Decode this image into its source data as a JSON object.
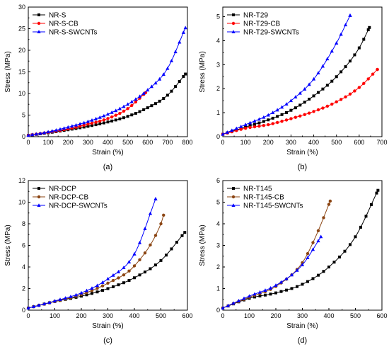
{
  "chart_data": [
    {
      "type": "line",
      "panel_label": "(a)",
      "xlabel": "Strain (%)",
      "ylabel": "Stress (MPa)",
      "xlim": [
        0,
        800
      ],
      "ylim": [
        0,
        30
      ],
      "xticks": [
        0,
        100,
        200,
        300,
        400,
        500,
        600,
        700,
        800
      ],
      "yticks": [
        0,
        5,
        10,
        15,
        20,
        25,
        30
      ],
      "grid": false,
      "legend_position": "top-left",
      "series": [
        {
          "name": "NR-S",
          "color": "#000000",
          "marker": "square",
          "x": [
            0,
            100,
            200,
            300,
            400,
            500,
            600,
            700,
            790
          ],
          "y": [
            0.3,
            0.9,
            1.6,
            2.4,
            3.4,
            4.7,
            6.7,
            9.6,
            14.5
          ]
        },
        {
          "name": "NR-S-CB",
          "color": "#ff0000",
          "marker": "circle",
          "x": [
            0,
            100,
            200,
            300,
            400,
            500,
            590
          ],
          "y": [
            0.3,
            1.0,
            1.8,
            2.9,
            4.2,
            6.5,
            10.2
          ]
        },
        {
          "name": "NR-S-SWCNTs",
          "color": "#0000ff",
          "marker": "triangle",
          "x": [
            0,
            100,
            200,
            300,
            400,
            500,
            600,
            700,
            790
          ],
          "y": [
            0.3,
            1.1,
            2.2,
            3.5,
            5.2,
            7.5,
            10.8,
            15.8,
            25.2
          ]
        }
      ]
    },
    {
      "type": "line",
      "panel_label": "(b)",
      "xlabel": "Strain (%)",
      "ylabel": "Stress (MPa)",
      "xlim": [
        0,
        700
      ],
      "ylim": [
        0,
        5.4
      ],
      "xticks": [
        0,
        100,
        200,
        300,
        400,
        500,
        600,
        700
      ],
      "yticks": [
        0,
        1,
        2,
        3,
        4,
        5
      ],
      "grid": false,
      "legend_position": "top-left",
      "series": [
        {
          "name": "NR-T29",
          "color": "#000000",
          "marker": "square",
          "x": [
            0,
            100,
            200,
            300,
            400,
            500,
            600,
            645
          ],
          "y": [
            0.1,
            0.4,
            0.7,
            1.1,
            1.7,
            2.5,
            3.7,
            4.55
          ]
        },
        {
          "name": "NR-T29-CB",
          "color": "#ff0000",
          "marker": "circle",
          "x": [
            0,
            100,
            200,
            300,
            400,
            500,
            600,
            680
          ],
          "y": [
            0.1,
            0.35,
            0.5,
            0.75,
            1.05,
            1.45,
            2.05,
            2.8
          ]
        },
        {
          "name": "NR-T29-SWCNTs",
          "color": "#0000ff",
          "marker": "triangle",
          "x": [
            0,
            100,
            200,
            300,
            400,
            500,
            560
          ],
          "y": [
            0.1,
            0.5,
            0.9,
            1.5,
            2.4,
            3.9,
            5.05
          ]
        }
      ]
    },
    {
      "type": "line",
      "panel_label": "(c)",
      "xlabel": "Strain (%)",
      "ylabel": "Stress (MPa)",
      "xlim": [
        0,
        600
      ],
      "ylim": [
        0,
        12
      ],
      "xticks": [
        0,
        100,
        200,
        300,
        400,
        500,
        600
      ],
      "yticks": [
        0,
        2,
        4,
        6,
        8,
        10,
        12
      ],
      "grid": false,
      "legend_position": "top-left",
      "series": [
        {
          "name": "NR-DCP",
          "color": "#000000",
          "marker": "square",
          "x": [
            0,
            100,
            200,
            300,
            400,
            500,
            590
          ],
          "y": [
            0.2,
            0.8,
            1.3,
            2.0,
            3.0,
            4.6,
            7.2
          ]
        },
        {
          "name": "NR-DCP-CB",
          "color": "#8b4513",
          "marker": "circle",
          "x": [
            0,
            100,
            200,
            300,
            400,
            500,
            510
          ],
          "y": [
            0.2,
            0.8,
            1.45,
            2.5,
            4.1,
            8.0,
            8.8
          ]
        },
        {
          "name": "NR-DCP-SWCNTs",
          "color": "#0000ff",
          "marker": "triangle",
          "x": [
            0,
            100,
            200,
            300,
            400,
            480
          ],
          "y": [
            0.2,
            0.85,
            1.6,
            2.9,
            5.2,
            10.3
          ]
        }
      ]
    },
    {
      "type": "line",
      "panel_label": "(d)",
      "xlabel": "Strain (%)",
      "ylabel": "Stress (MPa)",
      "xlim": [
        0,
        600
      ],
      "ylim": [
        0,
        6
      ],
      "xticks": [
        0,
        100,
        200,
        300,
        400,
        500,
        600
      ],
      "yticks": [
        0,
        1,
        2,
        3,
        4,
        5,
        6
      ],
      "grid": false,
      "legend_position": "top-left",
      "series": [
        {
          "name": "NR-T145",
          "color": "#000000",
          "marker": "square",
          "x": [
            0,
            100,
            200,
            300,
            400,
            500,
            585
          ],
          "y": [
            0.1,
            0.55,
            0.8,
            1.2,
            2.0,
            3.4,
            5.55
          ]
        },
        {
          "name": "NR-T145-CB",
          "color": "#8b4513",
          "marker": "circle",
          "x": [
            0,
            100,
            200,
            300,
            350,
            405
          ],
          "y": [
            0.1,
            0.6,
            1.1,
            2.2,
            3.4,
            5.05
          ]
        },
        {
          "name": "NR-T145-SWCNTs",
          "color": "#0000ff",
          "marker": "triangle",
          "x": [
            0,
            100,
            200,
            300,
            370
          ],
          "y": [
            0.1,
            0.65,
            1.15,
            2.1,
            3.4
          ]
        }
      ]
    }
  ]
}
